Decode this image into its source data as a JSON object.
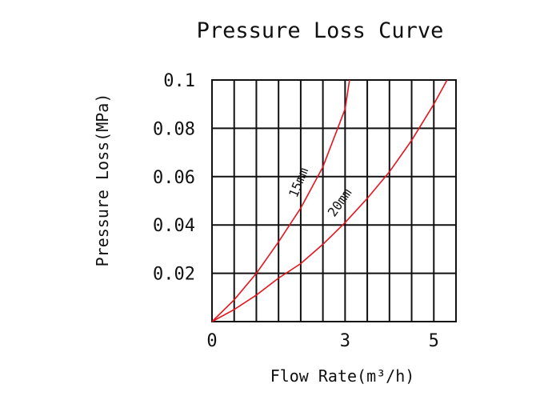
{
  "chart_data": {
    "type": "line",
    "title": "Pressure Loss Curve",
    "xlabel": "Flow Rate(m³/h)",
    "ylabel": "Pressure Loss(MPa)",
    "xlim": [
      0,
      5.5
    ],
    "ylim": [
      0,
      0.1
    ],
    "x_ticks": [
      "0",
      "3",
      "5"
    ],
    "y_ticks": [
      "0.02",
      "0.04",
      "0.06",
      "0.08",
      "0.1"
    ],
    "grid": true,
    "series": [
      {
        "name": "15mm",
        "color": "#e8141e",
        "x": [
          0,
          0.5,
          1.0,
          1.5,
          2.0,
          2.5,
          3.0,
          3.1
        ],
        "y": [
          0,
          0.009,
          0.02,
          0.033,
          0.047,
          0.064,
          0.088,
          0.1
        ]
      },
      {
        "name": "20mm",
        "color": "#e8141e",
        "x": [
          0,
          0.5,
          1.0,
          1.5,
          2.0,
          2.5,
          3.0,
          3.5,
          4.0,
          4.5,
          5.0,
          5.3
        ],
        "y": [
          0,
          0.005,
          0.011,
          0.018,
          0.024,
          0.032,
          0.041,
          0.051,
          0.062,
          0.075,
          0.09,
          0.1
        ]
      }
    ]
  }
}
